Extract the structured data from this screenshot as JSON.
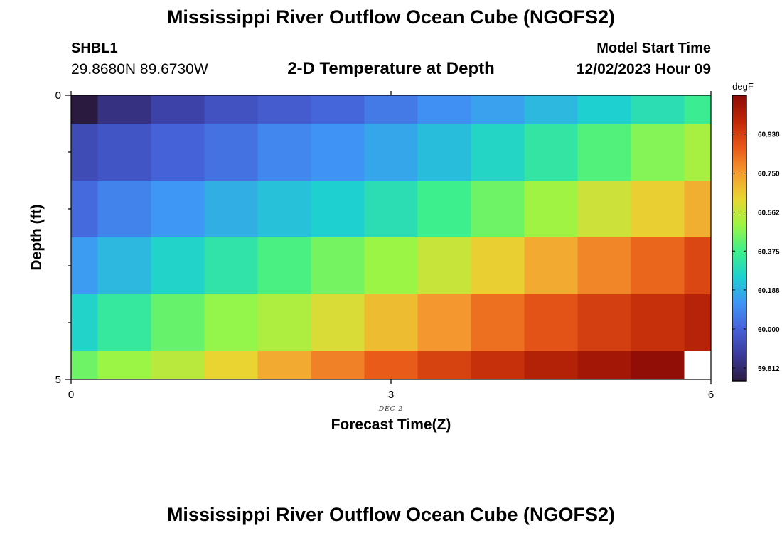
{
  "header": {
    "main_title": "Mississippi River Outflow Ocean Cube (NGOFS2)",
    "station_id": "SHBL1",
    "station_coords": "29.8680N  89.6730W",
    "plot_title": "2-D Temperature at Depth",
    "start_label": "Model Start Time",
    "start_value": "12/02/2023 Hour 09"
  },
  "footer": {
    "title": "Mississippi River Outflow Ocean Cube (NGOFS2)"
  },
  "chart_data": {
    "type": "heatmap",
    "title": "2-D Temperature at Depth",
    "xlabel": "Forecast Time(Z)",
    "ylabel": "Depth (ft)",
    "x_ticks": [
      0,
      3,
      6
    ],
    "x_tick_labels": [
      "0",
      "3",
      "6"
    ],
    "x_date_label": "DEC 2",
    "y_ticks": [
      0,
      5
    ],
    "y_tick_labels": [
      "0",
      "5"
    ],
    "xlim": [
      0,
      6
    ],
    "ylim": [
      0,
      5
    ],
    "x": [
      0,
      0.5,
      1,
      1.5,
      2,
      2.5,
      3,
      3.5,
      4,
      4.5,
      5,
      5.5,
      6
    ],
    "depth": [
      0,
      1,
      2,
      3,
      4,
      5
    ],
    "values": [
      [
        59.75,
        59.84,
        59.9,
        59.95,
        59.98,
        60.01,
        60.06,
        60.11,
        60.15,
        60.2,
        60.25,
        60.3,
        60.36
      ],
      [
        59.93,
        59.96,
        60.0,
        60.04,
        60.09,
        60.12,
        60.16,
        60.21,
        60.27,
        60.33,
        60.4,
        60.47,
        60.52
      ],
      [
        60.02,
        60.08,
        60.13,
        60.18,
        60.22,
        60.25,
        60.3,
        60.37,
        60.44,
        60.51,
        60.58,
        60.64,
        60.71
      ],
      [
        60.14,
        60.2,
        60.26,
        60.32,
        60.39,
        60.45,
        60.5,
        60.57,
        60.64,
        60.72,
        60.79,
        60.85,
        60.92
      ],
      [
        60.26,
        60.34,
        60.43,
        60.49,
        60.53,
        60.6,
        60.68,
        60.76,
        60.83,
        60.89,
        60.94,
        60.98,
        61.02
      ],
      [
        60.44,
        60.5,
        60.55,
        60.63,
        60.72,
        60.8,
        60.87,
        60.93,
        60.98,
        61.03,
        61.07,
        61.11,
        null
      ]
    ],
    "colorbar": {
      "unit": "degF",
      "min": 59.75,
      "max": 61.125,
      "tick_values": [
        59.812,
        60.0,
        60.188,
        60.375,
        60.562,
        60.75,
        60.938
      ],
      "tick_labels": [
        "59.812",
        "60.000",
        "60.188",
        "60.375",
        "60.562",
        "60.750",
        "60.938"
      ],
      "colors": [
        "#2b1a40",
        "#3b3a9c",
        "#4662d8",
        "#3f95f5",
        "#1fd0d0",
        "#3ff08a",
        "#9bf545",
        "#e8d632",
        "#f59c30",
        "#e85818",
        "#c02808",
        "#8a0a05"
      ]
    }
  }
}
